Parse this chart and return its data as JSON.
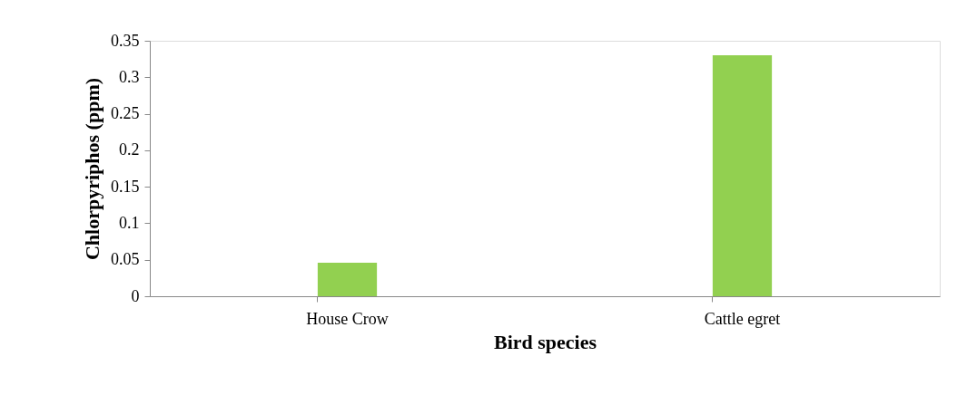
{
  "chart_data": {
    "type": "bar",
    "xlabel": "Bird species",
    "ylabel": "Chlorpyriphos  (ppm)",
    "categories": [
      "House Crow",
      "Cattle egret"
    ],
    "values": [
      0.046,
      0.33
    ],
    "color": "#92d050",
    "ylim": [
      0,
      0.35
    ],
    "yticks": [
      0,
      0.05,
      0.1,
      0.15,
      0.2,
      0.25,
      0.3,
      0.35
    ]
  }
}
